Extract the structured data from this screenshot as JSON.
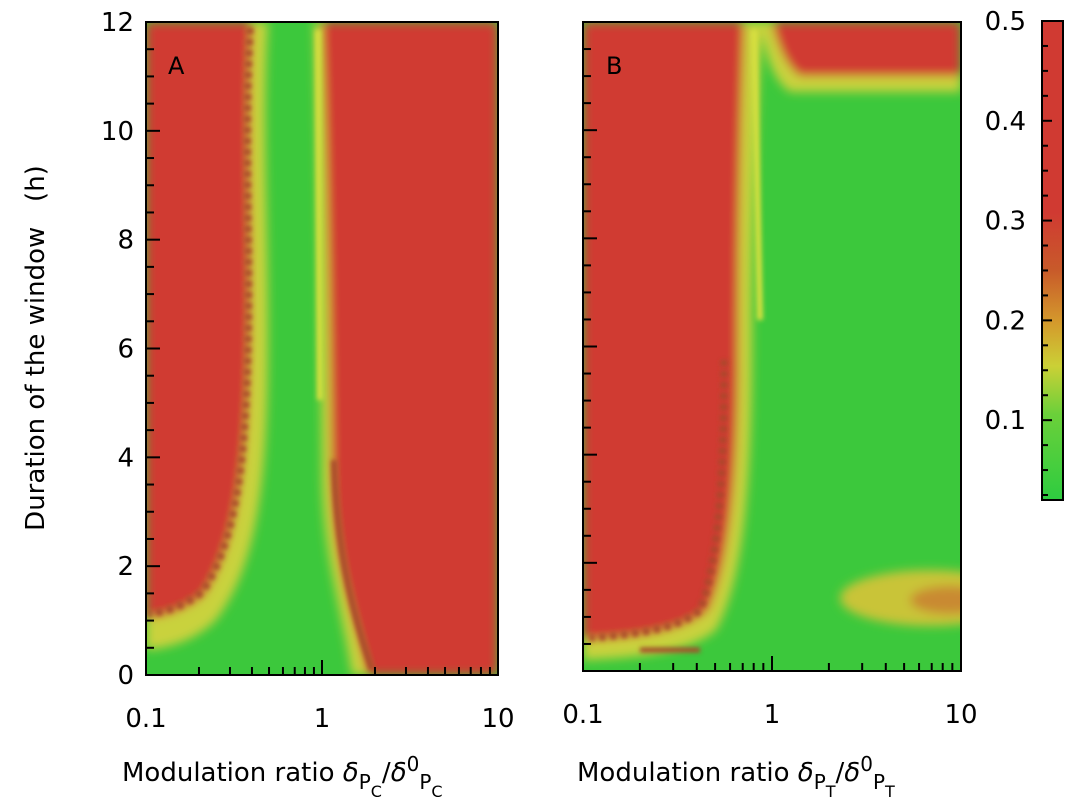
{
  "chart_data": [
    {
      "type": "heatmap",
      "panel_label": "A",
      "xlabel": "Modulation ratio δ_PC / δ0_PC",
      "xlabel_parts": {
        "prefix": "Modulation ratio ",
        "delta": "δ",
        "sub": "P",
        "subsub": "C",
        "slash": "/",
        "delta0": "δ",
        "sup": "0"
      },
      "ylabel": "Duration of the window   (h)",
      "xscale": "log",
      "xlim": [
        0.1,
        10
      ],
      "ylim": [
        0,
        12
      ],
      "x_ticks": [
        0.1,
        1,
        10
      ],
      "x_tick_labels": [
        "0.1",
        "1",
        "10"
      ],
      "y_ticks": [
        0,
        2,
        4,
        6,
        8,
        10,
        12
      ],
      "y_tick_labels": [
        "0",
        "2",
        "4",
        "6",
        "8",
        "10",
        "12"
      ],
      "regions": [
        {
          "label": "high",
          "x_range": [
            0.1,
            0.45
          ],
          "y_range": [
            1.2,
            12
          ]
        },
        {
          "label": "low",
          "x_range": [
            0.45,
            1.0
          ],
          "y_range": [
            0,
            12
          ]
        },
        {
          "label": "high",
          "x_range": [
            1.05,
            10
          ],
          "y_range": [
            0,
            12
          ]
        }
      ]
    },
    {
      "type": "heatmap",
      "panel_label": "B",
      "xlabel": "Modulation ratio δ_PT / δ0_PT",
      "xlabel_parts": {
        "prefix": "Modulation ratio ",
        "delta": "δ",
        "sub": "P",
        "subsub": "T",
        "slash": "/",
        "delta0": "δ",
        "sup": "0"
      },
      "xscale": "log",
      "xlim": [
        0.1,
        10
      ],
      "ylim": [
        0,
        12
      ],
      "x_ticks": [
        0.1,
        1,
        10
      ],
      "x_tick_labels": [
        "0.1",
        "1",
        "10"
      ],
      "y_ticks": [
        0,
        2,
        4,
        6,
        8,
        10,
        12
      ],
      "regions": [
        {
          "label": "high",
          "x_range": [
            0.1,
            0.6
          ],
          "y_range": [
            0.7,
            12
          ]
        },
        {
          "label": "low",
          "x_range": [
            0.7,
            10
          ],
          "y_range": [
            0,
            11
          ]
        },
        {
          "label": "high",
          "x_range": [
            1.2,
            10
          ],
          "y_range": [
            11,
            12
          ]
        }
      ]
    }
  ],
  "colorbar": {
    "range": [
      0.02,
      0.5
    ],
    "ticks": [
      0.1,
      0.2,
      0.3,
      0.4,
      0.5
    ],
    "tick_labels": [
      "0.1",
      "0.2",
      "0.3",
      "0.4",
      "0.5"
    ],
    "colors": {
      "low": "#3cc83c",
      "mid": "#d8c030",
      "high": "#d03a32"
    }
  }
}
